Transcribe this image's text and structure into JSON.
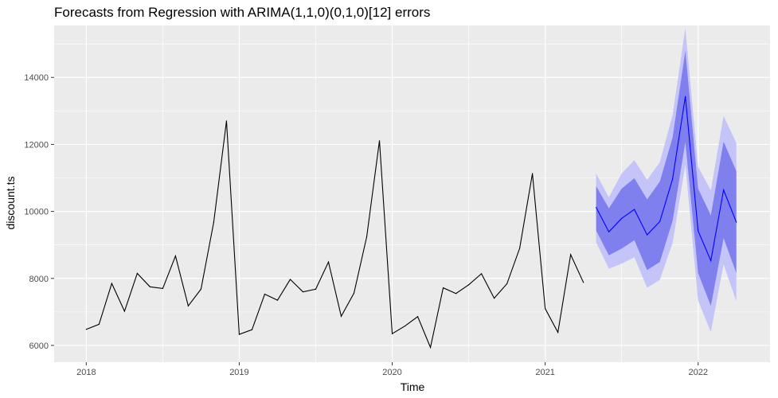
{
  "chart_data": {
    "type": "line",
    "title": "Forecasts from Regression with ARIMA(1,1,0)(0,1,0)[12] errors",
    "xlabel": "Time",
    "ylabel": "discount.ts",
    "xlim": [
      2017.79,
      2022.47
    ],
    "ylim": [
      5500,
      15550
    ],
    "x_ticks": [
      2018,
      2019,
      2020,
      2021,
      2022
    ],
    "x_tick_labels": [
      "2018",
      "2019",
      "2020",
      "2021",
      "2022"
    ],
    "y_ticks": [
      6000,
      8000,
      10000,
      12000,
      14000
    ],
    "y_tick_labels": [
      "6000",
      "8000",
      "10000",
      "12000",
      "14000"
    ],
    "grid": true,
    "legend": "none",
    "colors": {
      "panel": "#ebebeb",
      "grid": "#ffffff",
      "history_line": "#000000",
      "forecast_line": "#0000ff",
      "band_80": "#7f7fee",
      "band_95": "#c4c4f8"
    },
    "series": [
      {
        "kind": "history",
        "start": 2018.0,
        "step": 0.083333,
        "values": [
          6480,
          6630,
          7850,
          7020,
          8150,
          7750,
          7700,
          8670,
          7180,
          7680,
          9680,
          12700,
          6330,
          6470,
          7530,
          7350,
          7970,
          7600,
          7680,
          8490,
          6870,
          7560,
          9240,
          12110,
          6350,
          6580,
          6860,
          5940,
          7720,
          7550,
          7810,
          8140,
          7410,
          7840,
          8900,
          11130,
          7100,
          6390,
          8710,
          7880
        ]
      },
      {
        "kind": "forecast",
        "start": 2021.333,
        "step": 0.083333,
        "mean": [
          10120,
          9390,
          9790,
          10060,
          9300,
          9700,
          10970,
          13430,
          9420,
          8530,
          10640,
          9680
        ],
        "lo80": [
          9430,
          8690,
          8890,
          9140,
          8250,
          8490,
          9720,
          12070,
          8160,
          7180,
          9200,
          8160
        ],
        "hi80": [
          10760,
          10090,
          10680,
          10990,
          10360,
          10890,
          12210,
          14790,
          10680,
          9880,
          12080,
          11200
        ],
        "lo95": [
          9080,
          8290,
          8440,
          8630,
          7720,
          7960,
          9060,
          11390,
          7340,
          6400,
          8420,
          7320
        ],
        "hi95": [
          11130,
          10420,
          11130,
          11530,
          10940,
          11470,
          12880,
          15470,
          11330,
          10630,
          12850,
          12040
        ]
      }
    ]
  }
}
